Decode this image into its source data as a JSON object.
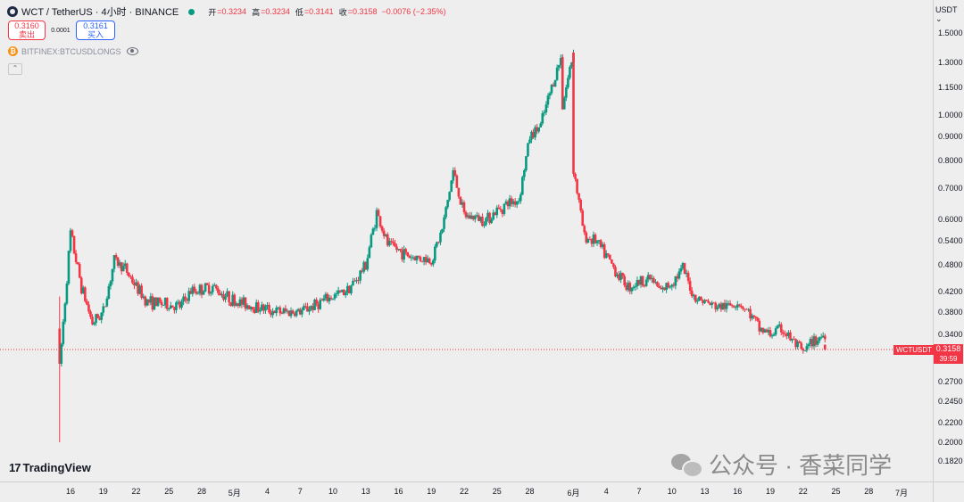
{
  "legend": {
    "title": "WCT / TetherUS · 4小时 · BINANCE",
    "open_label": "开",
    "open": "=0.3234",
    "high_label": "高",
    "high": "=0.3234",
    "low_label": "低",
    "low": "=0.3141",
    "close_label": "收",
    "close": "=0.3158",
    "change": "−0.0076 (−2.35%)"
  },
  "trade": {
    "sell_price": "0.3160",
    "sell_label": "卖出",
    "spread": "0.0001",
    "buy_price": "0.3161",
    "buy_label": "买入"
  },
  "indicator": {
    "name": "BITFINEX:BTCUSDLONGS"
  },
  "axis": {
    "currency": "USDT ⌄",
    "price_ticks": [
      "1.5000",
      "1.3000",
      "1.1500",
      "1.0000",
      "0.9000",
      "0.8000",
      "0.7000",
      "0.6000",
      "0.5400",
      "0.4800",
      "0.4200",
      "0.3800",
      "0.3400",
      "0.3000",
      "0.2700",
      "0.2450",
      "0.2200",
      "0.2000",
      "0.1820"
    ],
    "time_ticks": [
      "16",
      "19",
      "22",
      "25",
      "28",
      "5月",
      "4",
      "7",
      "10",
      "13",
      "16",
      "19",
      "22",
      "25",
      "28",
      "6月",
      "4",
      "7",
      "10",
      "13",
      "16",
      "19",
      "22",
      "25",
      "28",
      "7月"
    ]
  },
  "last_price": {
    "symbol": "WCTUSDT",
    "price": "0.3158",
    "countdown": "39:59"
  },
  "branding": {
    "logo_text": "TradingView",
    "watermark": "公众号 · 香菜同学"
  },
  "colors": {
    "up": "#089981",
    "down": "#f23645",
    "background": "#eeeeee"
  },
  "chart_data": {
    "type": "candlestick",
    "symbol": "WCT / TetherUS",
    "interval": "4小时",
    "exchange": "BINANCE",
    "y_scale": "log",
    "ylim": [
      0.18,
      1.55
    ],
    "price_line": 0.3158,
    "date_range": [
      "04-15",
      "06-25"
    ],
    "x_tick_labels": [
      "16",
      "19",
      "22",
      "25",
      "28",
      "5月",
      "4",
      "7",
      "10",
      "13",
      "16",
      "19",
      "22",
      "25",
      "28",
      "6月",
      "4",
      "7",
      "10",
      "13",
      "16",
      "19",
      "22",
      "25",
      "28",
      "7月"
    ],
    "close_path": [
      [
        "04-15",
        0.35
      ],
      [
        "04-15",
        0.29
      ],
      [
        "04-16",
        0.56
      ],
      [
        "04-17",
        0.43
      ],
      [
        "04-18",
        0.36
      ],
      [
        "04-19",
        0.38
      ],
      [
        "04-20",
        0.49
      ],
      [
        "04-21",
        0.47
      ],
      [
        "04-22",
        0.43
      ],
      [
        "04-23",
        0.4
      ],
      [
        "04-26",
        0.39
      ],
      [
        "04-27",
        0.42
      ],
      [
        "04-29",
        0.43
      ],
      [
        "05-01",
        0.4
      ],
      [
        "05-03",
        0.39
      ],
      [
        "05-05",
        0.38
      ],
      [
        "05-07",
        0.38
      ],
      [
        "05-09",
        0.4
      ],
      [
        "05-11",
        0.42
      ],
      [
        "05-12",
        0.44
      ],
      [
        "05-13",
        0.48
      ],
      [
        "05-14",
        0.62
      ],
      [
        "05-15",
        0.53
      ],
      [
        "05-17",
        0.5
      ],
      [
        "05-19",
        0.49
      ],
      [
        "05-20",
        0.57
      ],
      [
        "05-21",
        0.76
      ],
      [
        "05-22",
        0.61
      ],
      [
        "05-24",
        0.6
      ],
      [
        "05-26",
        0.65
      ],
      [
        "05-27",
        0.66
      ],
      [
        "05-28",
        0.9
      ],
      [
        "05-29",
        0.95
      ],
      [
        "05-30",
        1.15
      ],
      [
        "05-31",
        1.36
      ],
      [
        "05-31",
        1.05
      ],
      [
        "06-01",
        1.37
      ],
      [
        "06-01",
        0.77
      ],
      [
        "06-02",
        0.55
      ],
      [
        "06-03",
        0.54
      ],
      [
        "06-04",
        0.5
      ],
      [
        "06-05",
        0.46
      ],
      [
        "06-06",
        0.43
      ],
      [
        "06-08",
        0.45
      ],
      [
        "06-09",
        0.42
      ],
      [
        "06-10",
        0.44
      ],
      [
        "06-11",
        0.47
      ],
      [
        "06-12",
        0.41
      ],
      [
        "06-14",
        0.39
      ],
      [
        "06-15",
        0.39
      ],
      [
        "06-16",
        0.4
      ],
      [
        "06-17",
        0.38
      ],
      [
        "06-18",
        0.35
      ],
      [
        "06-19",
        0.34
      ],
      [
        "06-20",
        0.35
      ],
      [
        "06-21",
        0.33
      ],
      [
        "06-22",
        0.31
      ],
      [
        "06-23",
        0.33
      ],
      [
        "06-24",
        0.34
      ],
      [
        "06-24",
        0.3158
      ]
    ]
  }
}
